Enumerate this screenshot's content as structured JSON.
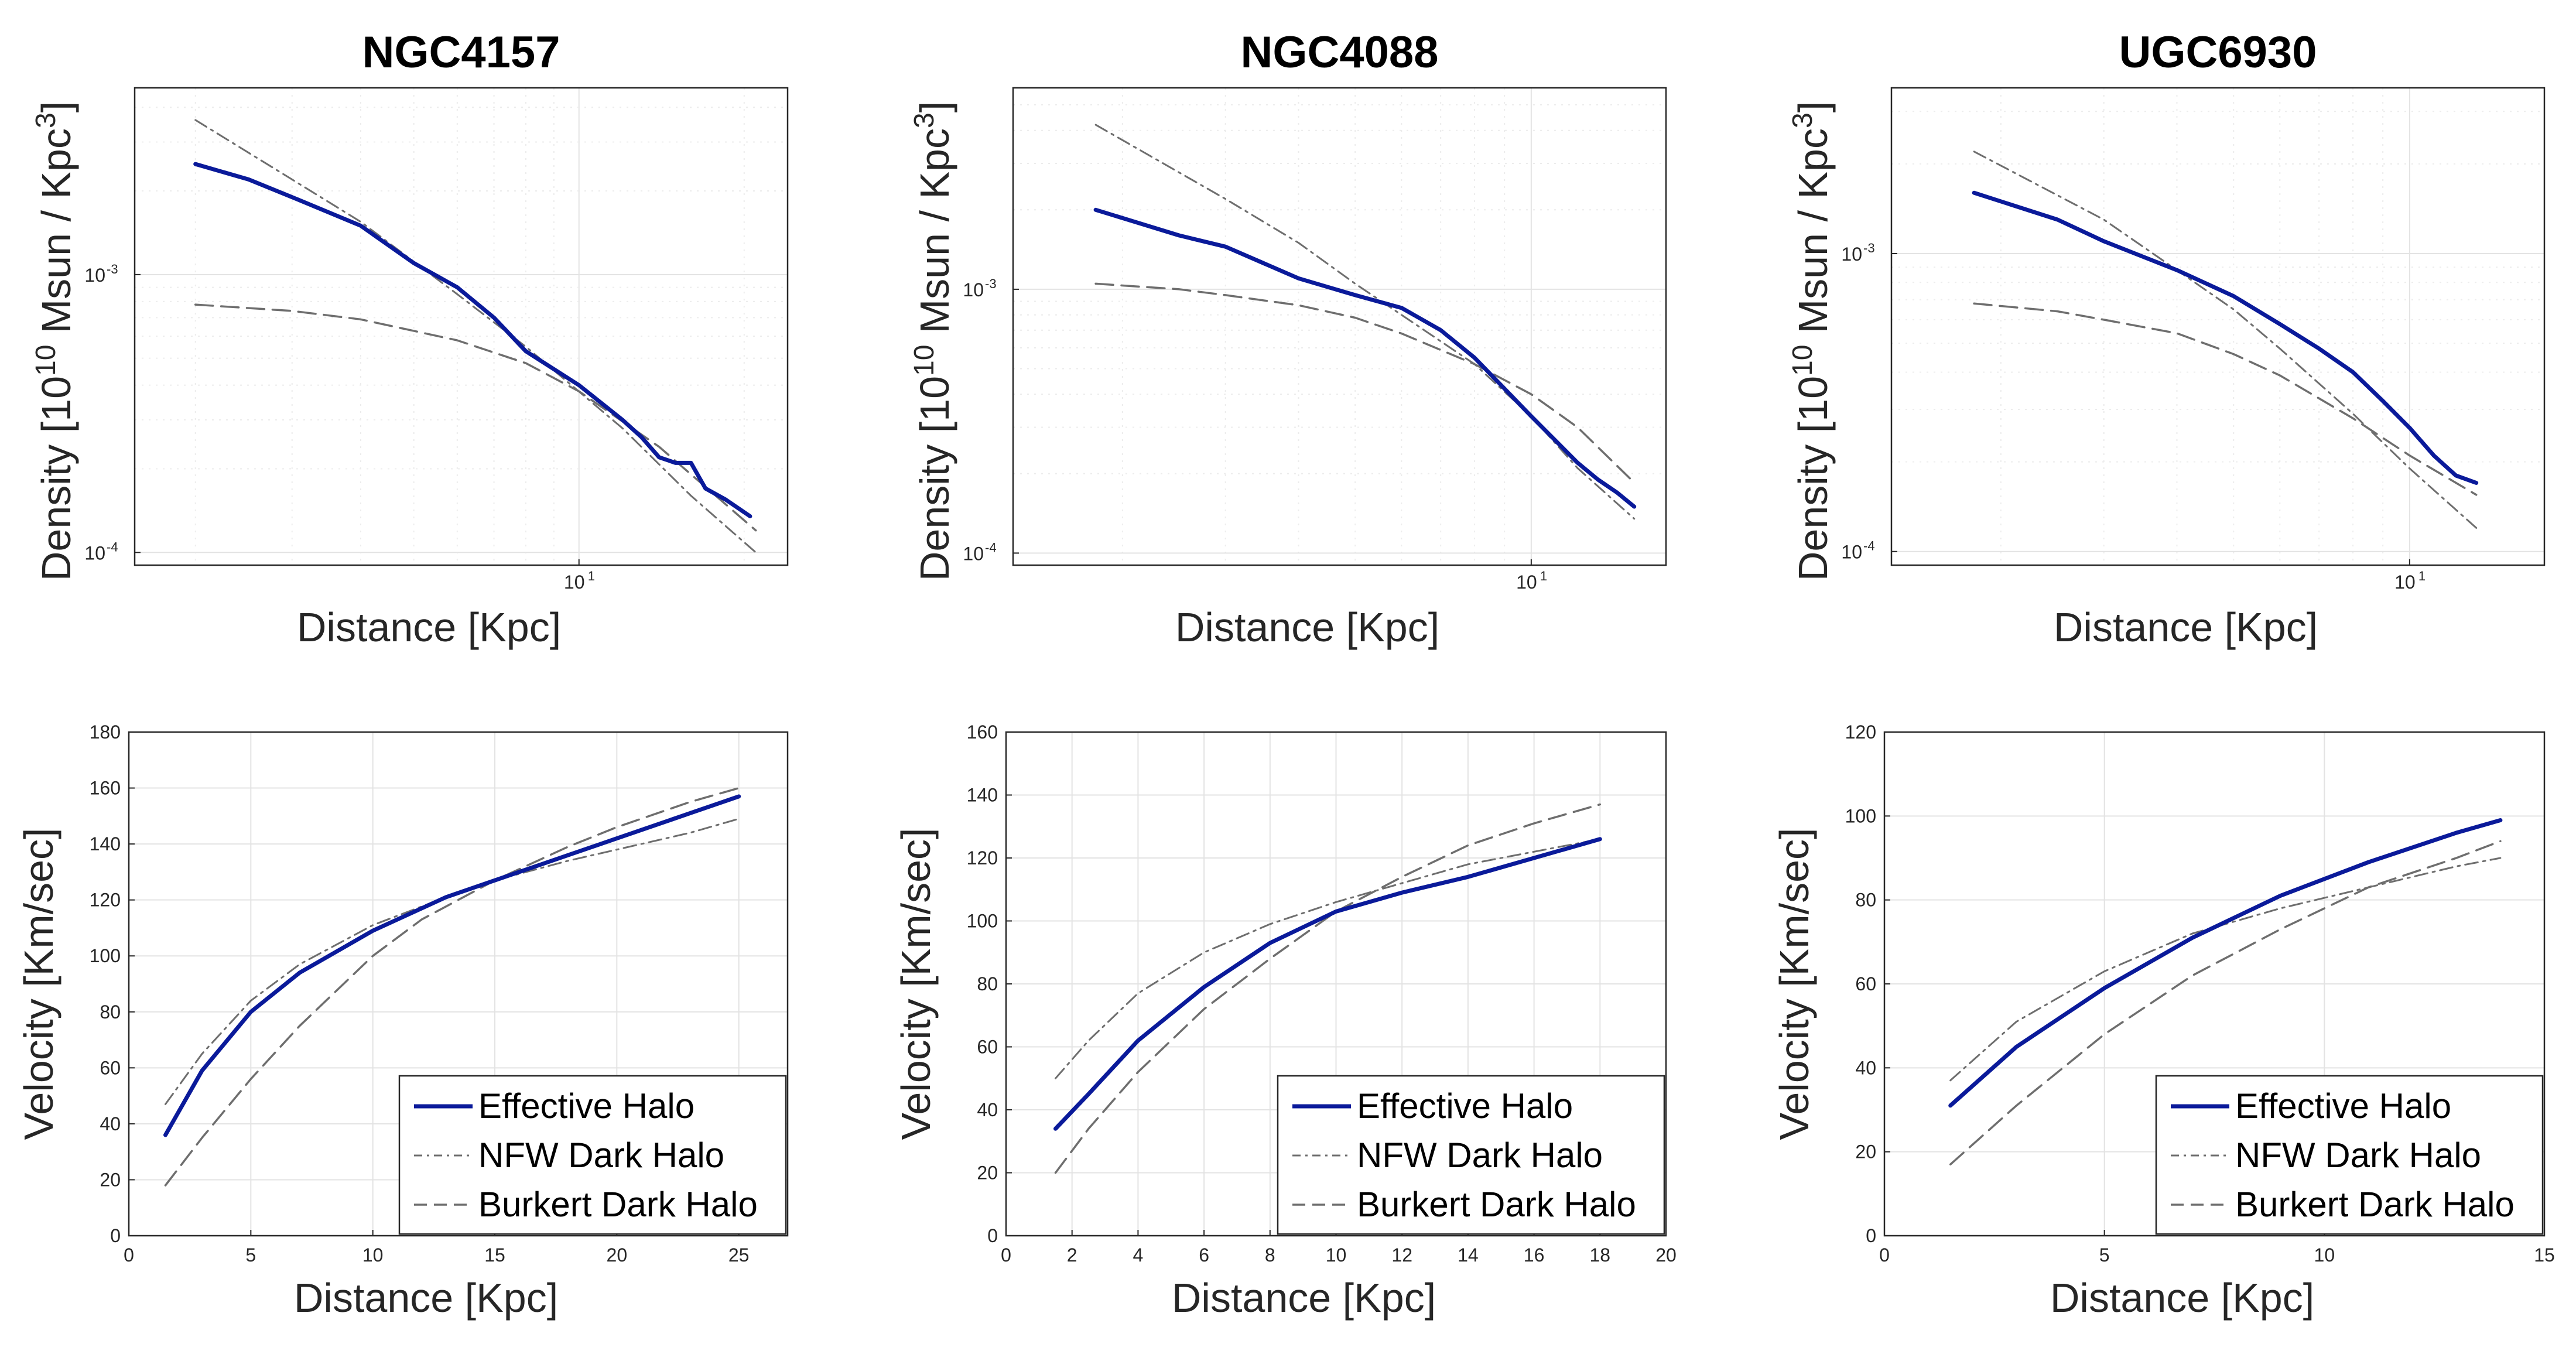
{
  "colors": {
    "effective": "#0a1a9a",
    "nfw": "#6e6e6e",
    "burkert": "#6e6e6e",
    "axis": "#262626"
  },
  "legend": {
    "effective": "Effective Halo",
    "nfw": "NFW Dark Halo",
    "burkert": "Burkert Dark Halo"
  },
  "chart_data": [
    {
      "id": "ngc4157-density",
      "type": "line",
      "scale": "loglog",
      "title": "NGC4157",
      "xlabel": "Distance  [Kpc]",
      "ylabel": "Density  [10^10  Msun / Kpc^3]",
      "xlim": [
        1.55,
        24
      ],
      "ylim": [
        9e-05,
        0.0047
      ],
      "xticks": [
        {
          "v": 10,
          "base": "10",
          "exp": "1"
        }
      ],
      "yticks": [
        {
          "v": 0.0001,
          "base": "10",
          "exp": "-4"
        },
        {
          "v": 0.001,
          "base": "10",
          "exp": "-3"
        }
      ],
      "series": [
        {
          "name": "NFW Dark Halo",
          "style": "nfw",
          "points": [
            [
              2.0,
              0.0036
            ],
            [
              3.0,
              0.0022
            ],
            [
              4.0,
              0.00155
            ],
            [
              6.0,
              0.00085
            ],
            [
              8.0,
              0.00055
            ],
            [
              12.0,
              0.00028
            ],
            [
              16.0,
              0.00016
            ],
            [
              21.0,
              0.0001
            ]
          ]
        },
        {
          "name": "Burkert Dark Halo",
          "style": "burkert",
          "points": [
            [
              2.0,
              0.00078
            ],
            [
              3.0,
              0.00074
            ],
            [
              4.0,
              0.00069
            ],
            [
              6.0,
              0.00058
            ],
            [
              8.0,
              0.00048
            ],
            [
              10.0,
              0.00038
            ],
            [
              14.0,
              0.00024
            ],
            [
              21.0,
              0.00012
            ]
          ]
        },
        {
          "name": "Effective Halo",
          "style": "effective",
          "points": [
            [
              2.0,
              0.0025
            ],
            [
              2.5,
              0.0022
            ],
            [
              3.0,
              0.0019
            ],
            [
              4.0,
              0.0015
            ],
            [
              5.0,
              0.0011
            ],
            [
              6.0,
              0.0009
            ],
            [
              7.0,
              0.0007
            ],
            [
              8.0,
              0.00053
            ],
            [
              10.0,
              0.0004
            ],
            [
              12.0,
              0.0003
            ],
            [
              13.0,
              0.00026
            ],
            [
              14.0,
              0.00022
            ],
            [
              15.0,
              0.00021
            ],
            [
              16.0,
              0.00021
            ],
            [
              17.0,
              0.00017
            ],
            [
              18.5,
              0.000155
            ],
            [
              20.5,
              0.000135
            ]
          ]
        }
      ]
    },
    {
      "id": "ngc4088-density",
      "type": "line",
      "scale": "loglog",
      "title": "NGC4088",
      "xlabel": "Distance  [Kpc]",
      "ylabel": "Density  [10^10  Msun / Kpc^3]",
      "xlim": [
        1.3,
        17
      ],
      "ylim": [
        9e-05,
        0.0058
      ],
      "xticks": [
        {
          "v": 10,
          "base": "10",
          "exp": "1"
        }
      ],
      "yticks": [
        {
          "v": 0.0001,
          "base": "10",
          "exp": "-4"
        },
        {
          "v": 0.001,
          "base": "10",
          "exp": "-3"
        }
      ],
      "series": [
        {
          "name": "NFW Dark Halo",
          "style": "nfw",
          "points": [
            [
              1.8,
              0.0042
            ],
            [
              3.0,
              0.0022
            ],
            [
              4.0,
              0.0015
            ],
            [
              5.0,
              0.00105
            ],
            [
              6.0,
              0.0008
            ],
            [
              8.0,
              0.00052
            ],
            [
              10.0,
              0.00033
            ],
            [
              12.0,
              0.00021
            ],
            [
              15.0,
              0.000135
            ]
          ]
        },
        {
          "name": "Burkert Dark Halo",
          "style": "burkert",
          "points": [
            [
              1.8,
              0.00105
            ],
            [
              2.5,
              0.001
            ],
            [
              3.0,
              0.00095
            ],
            [
              4.0,
              0.00087
            ],
            [
              5.0,
              0.00078
            ],
            [
              6.0,
              0.00068
            ],
            [
              8.0,
              0.00052
            ],
            [
              10.0,
              0.0004
            ],
            [
              12.0,
              0.0003
            ],
            [
              15.0,
              0.000185
            ]
          ]
        },
        {
          "name": "Effective Halo",
          "style": "effective",
          "points": [
            [
              1.8,
              0.002
            ],
            [
              2.5,
              0.0016
            ],
            [
              3.0,
              0.00145
            ],
            [
              4.0,
              0.0011
            ],
            [
              5.0,
              0.00095
            ],
            [
              6.0,
              0.00085
            ],
            [
              7.0,
              0.0007
            ],
            [
              8.0,
              0.00055
            ],
            [
              10.0,
              0.00033
            ],
            [
              12.0,
              0.00022
            ],
            [
              13.0,
              0.00019
            ],
            [
              14.0,
              0.00017
            ],
            [
              15.0,
              0.00015
            ]
          ]
        }
      ]
    },
    {
      "id": "ugc6930-density",
      "type": "line",
      "scale": "loglog",
      "title": "UGC6930",
      "xlabel": "Distance  [Kpc]",
      "ylabel": "Density  [10^10  Msun / Kpc^3]",
      "xlim": [
        1.3,
        17
      ],
      "ylim": [
        9e-05,
        0.0036
      ],
      "xticks": [
        {
          "v": 10,
          "base": "10",
          "exp": "1"
        }
      ],
      "yticks": [
        {
          "v": 0.0001,
          "base": "10",
          "exp": "-4"
        },
        {
          "v": 0.001,
          "base": "10",
          "exp": "-3"
        }
      ],
      "series": [
        {
          "name": "NFW Dark Halo",
          "style": "nfw",
          "points": [
            [
              1.8,
              0.0022
            ],
            [
              3.0,
              0.0013
            ],
            [
              4.0,
              0.00088
            ],
            [
              5.0,
              0.00065
            ],
            [
              6.0,
              0.00048
            ],
            [
              8.0,
              0.00029
            ],
            [
              10.0,
              0.00019
            ],
            [
              13.0,
              0.00012
            ]
          ]
        },
        {
          "name": "Burkert Dark Halo",
          "style": "burkert",
          "points": [
            [
              1.8,
              0.00068
            ],
            [
              2.5,
              0.00064
            ],
            [
              3.0,
              0.0006
            ],
            [
              4.0,
              0.00054
            ],
            [
              5.0,
              0.00046
            ],
            [
              6.0,
              0.00039
            ],
            [
              8.0,
              0.00028
            ],
            [
              10.0,
              0.00021
            ],
            [
              13.0,
              0.000155
            ]
          ]
        },
        {
          "name": "Effective Halo",
          "style": "effective",
          "points": [
            [
              1.8,
              0.0016
            ],
            [
              2.5,
              0.0013
            ],
            [
              3.0,
              0.0011
            ],
            [
              4.0,
              0.00088
            ],
            [
              5.0,
              0.00072
            ],
            [
              6.0,
              0.00058
            ],
            [
              7.0,
              0.00048
            ],
            [
              8.0,
              0.0004
            ],
            [
              9.0,
              0.00032
            ],
            [
              10.0,
              0.00026
            ],
            [
              11.0,
              0.00021
            ],
            [
              12.0,
              0.00018
            ],
            [
              13.0,
              0.00017
            ]
          ]
        }
      ]
    },
    {
      "id": "ngc4157-velocity",
      "type": "line",
      "scale": "linear",
      "xlabel": "Distance  [Kpc]",
      "ylabel": "Velocity  [Km/sec]",
      "xlim": [
        0,
        27
      ],
      "ylim": [
        0,
        180
      ],
      "xticks": [
        0,
        5,
        10,
        15,
        20,
        25
      ],
      "yticks": [
        0,
        20,
        40,
        60,
        80,
        100,
        120,
        140,
        160,
        180
      ],
      "legend_position": "bottom-right",
      "series": [
        {
          "name": "NFW Dark Halo",
          "style": "nfw",
          "points": [
            [
              1.5,
              47
            ],
            [
              3,
              65
            ],
            [
              5,
              84
            ],
            [
              7,
              97
            ],
            [
              10,
              111
            ],
            [
              13,
              121
            ],
            [
              15,
              127
            ],
            [
              18,
              134
            ],
            [
              20,
              138
            ],
            [
              23,
              144
            ],
            [
              25,
              149
            ]
          ]
        },
        {
          "name": "Burkert Dark Halo",
          "style": "burkert",
          "points": [
            [
              1.5,
              18
            ],
            [
              3,
              35
            ],
            [
              5,
              56
            ],
            [
              7,
              75
            ],
            [
              10,
              100
            ],
            [
              12,
              113
            ],
            [
              15,
              127
            ],
            [
              18,
              139
            ],
            [
              20,
              146
            ],
            [
              23,
              155
            ],
            [
              25,
              160
            ]
          ]
        },
        {
          "name": "Effective Halo",
          "style": "effective",
          "points": [
            [
              1.5,
              36
            ],
            [
              3,
              59
            ],
            [
              5,
              80
            ],
            [
              7,
              94
            ],
            [
              10,
              109
            ],
            [
              13,
              121
            ],
            [
              15,
              127
            ],
            [
              18,
              136
            ],
            [
              20,
              142
            ],
            [
              23,
              151
            ],
            [
              25,
              157
            ]
          ]
        }
      ]
    },
    {
      "id": "ngc4088-velocity",
      "type": "line",
      "scale": "linear",
      "xlabel": "Distance  [Kpc]",
      "ylabel": "Velocity  [Km/sec]",
      "xlim": [
        0,
        20
      ],
      "ylim": [
        0,
        160
      ],
      "xticks": [
        0,
        2,
        4,
        6,
        8,
        10,
        12,
        14,
        16,
        18,
        20
      ],
      "yticks": [
        0,
        20,
        40,
        60,
        80,
        100,
        120,
        140,
        160
      ],
      "legend_position": "bottom-right",
      "series": [
        {
          "name": "NFW Dark Halo",
          "style": "nfw",
          "points": [
            [
              1.5,
              50
            ],
            [
              2.5,
              62
            ],
            [
              4,
              77
            ],
            [
              6,
              90
            ],
            [
              8,
              99
            ],
            [
              10,
              106
            ],
            [
              12,
              112
            ],
            [
              14,
              118
            ],
            [
              16,
              122
            ],
            [
              18,
              126
            ]
          ]
        },
        {
          "name": "Burkert Dark Halo",
          "style": "burkert",
          "points": [
            [
              1.5,
              20
            ],
            [
              2.5,
              34
            ],
            [
              4,
              52
            ],
            [
              6,
              72
            ],
            [
              8,
              88
            ],
            [
              10,
              103
            ],
            [
              12,
              114
            ],
            [
              14,
              124
            ],
            [
              16,
              131
            ],
            [
              18,
              137
            ]
          ]
        },
        {
          "name": "Effective Halo",
          "style": "effective",
          "points": [
            [
              1.5,
              34
            ],
            [
              2.5,
              45
            ],
            [
              4,
              62
            ],
            [
              6,
              79
            ],
            [
              8,
              93
            ],
            [
              10,
              103
            ],
            [
              12,
              109
            ],
            [
              14,
              114
            ],
            [
              16,
              120
            ],
            [
              18,
              126
            ]
          ]
        }
      ]
    },
    {
      "id": "ugc6930-velocity",
      "type": "line",
      "scale": "linear",
      "xlabel": "Distance  [Kpc]",
      "ylabel": "Velocity  [Km/sec]",
      "xlim": [
        0,
        15
      ],
      "ylim": [
        0,
        120
      ],
      "xticks": [
        0,
        5,
        10,
        15
      ],
      "yticks": [
        0,
        20,
        40,
        60,
        80,
        100,
        120
      ],
      "legend_position": "bottom-right",
      "series": [
        {
          "name": "NFW Dark Halo",
          "style": "nfw",
          "points": [
            [
              1.5,
              37
            ],
            [
              3,
              51
            ],
            [
              5,
              63
            ],
            [
              7,
              72
            ],
            [
              9,
              78
            ],
            [
              11,
              83
            ],
            [
              13,
              88
            ],
            [
              14,
              90
            ]
          ]
        },
        {
          "name": "Burkert Dark Halo",
          "style": "burkert",
          "points": [
            [
              1.5,
              17
            ],
            [
              3,
              31
            ],
            [
              5,
              48
            ],
            [
              7,
              62
            ],
            [
              9,
              73
            ],
            [
              11,
              83
            ],
            [
              13,
              90
            ],
            [
              14,
              94
            ]
          ]
        },
        {
          "name": "Effective Halo",
          "style": "effective",
          "points": [
            [
              1.5,
              31
            ],
            [
              3,
              45
            ],
            [
              5,
              59
            ],
            [
              7,
              71
            ],
            [
              9,
              81
            ],
            [
              11,
              89
            ],
            [
              13,
              96
            ],
            [
              14,
              99
            ]
          ]
        }
      ]
    }
  ]
}
